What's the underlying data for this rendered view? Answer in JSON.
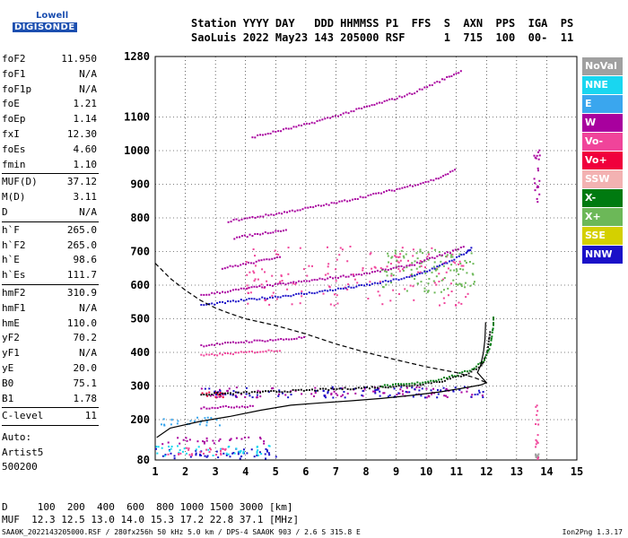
{
  "logo": {
    "line1": "Lowell",
    "line2": "DIGISONDE"
  },
  "header": {
    "line1": "Station YYYY DAY   DDD HHMMSS P1  FFS  S  AXN  PPS  IGA  PS",
    "line2": "SaoLuis 2022 May23 143 205000 RSF      1  715  100  00-  11"
  },
  "params": [
    [
      [
        "foF2",
        "11.950"
      ],
      [
        "foF1",
        "N/A"
      ],
      [
        "foF1p",
        "N/A"
      ],
      [
        "foE",
        "1.21"
      ],
      [
        "foEp",
        "1.14"
      ],
      [
        "fxI",
        "12.30"
      ],
      [
        "foEs",
        "4.60"
      ],
      [
        "fmin",
        "1.10"
      ]
    ],
    [
      [
        "MUF(D)",
        "37.12"
      ],
      [
        "M(D)",
        "3.11"
      ],
      [
        "D",
        "N/A"
      ]
    ],
    [
      [
        "h`F",
        "265.0"
      ],
      [
        "h`F2",
        "265.0"
      ],
      [
        "h`E",
        "98.6"
      ],
      [
        "h`Es",
        "111.7"
      ]
    ],
    [
      [
        "hmF2",
        "310.9"
      ],
      [
        "hmF1",
        "N/A"
      ],
      [
        "hmE",
        "110.0"
      ],
      [
        "yF2",
        "70.2"
      ],
      [
        "yF1",
        "N/A"
      ],
      [
        "yE",
        "20.0"
      ],
      [
        "B0",
        "75.1"
      ],
      [
        "B1",
        "1.78"
      ]
    ],
    [
      [
        "C-level",
        "11"
      ]
    ]
  ],
  "auto": {
    "l1": "Auto:",
    "l2": "Artist5",
    "l3": "500200"
  },
  "legend": [
    {
      "label": "NoVal",
      "color": "#a0a0a0"
    },
    {
      "label": "NNE",
      "color": "#19d6f0"
    },
    {
      "label": "E",
      "color": "#3aa6ee"
    },
    {
      "label": "W",
      "color": "#a8009e"
    },
    {
      "label": "Vo-",
      "color": "#f0449a"
    },
    {
      "label": "Vo+",
      "color": "#f0003c"
    },
    {
      "label": "SSW",
      "color": "#f3b2b2"
    },
    {
      "label": "X-",
      "color": "#007a10"
    },
    {
      "label": "X+",
      "color": "#6cb858"
    },
    {
      "label": "SSE",
      "color": "#d4d000"
    },
    {
      "label": "NNW",
      "color": "#1a10c8"
    }
  ],
  "chart_data": {
    "type": "scatter",
    "title": "",
    "xlabel": "",
    "ylabel": "",
    "xlim": [
      1,
      15
    ],
    "ylim": [
      80,
      1280
    ],
    "x_ticks": [
      1,
      2,
      3,
      4,
      5,
      6,
      7,
      8,
      9,
      10,
      11,
      12,
      13,
      14,
      15
    ],
    "y_ticks": [
      80,
      200,
      300,
      400,
      500,
      600,
      700,
      800,
      900,
      1000,
      1100,
      1280
    ],
    "grid": true,
    "series": [
      {
        "color": "#000000",
        "dash": false,
        "points": [
          [
            1.05,
            147
          ],
          [
            1.5,
            175
          ],
          [
            2.5,
            195
          ],
          [
            3.5,
            210
          ],
          [
            4.5,
            228
          ],
          [
            5.5,
            243
          ],
          [
            6.5,
            250
          ],
          [
            7.5,
            256
          ],
          [
            8.5,
            263
          ],
          [
            9.5,
            272
          ],
          [
            10.5,
            283
          ],
          [
            11.3,
            295
          ],
          [
            11.8,
            303
          ],
          [
            12.0,
            310
          ],
          [
            11.9,
            320
          ],
          [
            11.7,
            340
          ],
          [
            11.8,
            360
          ],
          [
            11.9,
            400
          ],
          [
            11.95,
            440
          ],
          [
            11.97,
            490
          ]
        ]
      },
      {
        "color": "#000000",
        "dash": true,
        "points": [
          [
            1.0,
            665
          ],
          [
            1.5,
            620
          ],
          [
            2.0,
            585
          ],
          [
            2.5,
            555
          ],
          [
            3.0,
            532
          ],
          [
            3.5,
            515
          ],
          [
            4.0,
            500
          ],
          [
            5.0,
            480
          ],
          [
            6.0,
            455
          ],
          [
            7.0,
            425
          ],
          [
            8.0,
            400
          ],
          [
            9.0,
            378
          ],
          [
            10.0,
            357
          ],
          [
            11.0,
            340
          ],
          [
            11.6,
            325
          ],
          [
            12.0,
            310
          ]
        ]
      }
    ],
    "traces": [
      {
        "color": "#111111",
        "points": [
          [
            2.5,
            275
          ],
          [
            4.0,
            280
          ],
          [
            6.0,
            287
          ],
          [
            8.0,
            295
          ],
          [
            9.5,
            302
          ],
          [
            10.5,
            315
          ],
          [
            11.3,
            335
          ],
          [
            11.8,
            360
          ],
          [
            12.0,
            400
          ],
          [
            12.1,
            470
          ]
        ]
      },
      {
        "color": "#007a10",
        "points": [
          [
            8.5,
            300
          ],
          [
            9.5,
            306
          ],
          [
            10.3,
            318
          ],
          [
            11.0,
            333
          ],
          [
            11.5,
            350
          ],
          [
            11.9,
            378
          ],
          [
            12.1,
            420
          ],
          [
            12.2,
            480
          ],
          [
            12.2,
            510
          ]
        ]
      },
      {
        "color": "#1a10c8",
        "points": [
          [
            2.5,
            540
          ],
          [
            4.0,
            556
          ],
          [
            6.0,
            575
          ],
          [
            8.0,
            600
          ],
          [
            9.5,
            625
          ],
          [
            10.5,
            660
          ],
          [
            11.3,
            695
          ],
          [
            11.5,
            712
          ]
        ]
      },
      {
        "color": "#a8009e",
        "points": [
          [
            2.5,
            570
          ],
          [
            4,
            590
          ],
          [
            6,
            612
          ],
          [
            8,
            635
          ],
          [
            9.5,
            660
          ],
          [
            10.5,
            690
          ],
          [
            11.3,
            715
          ]
        ]
      },
      {
        "color": "#a8009e",
        "points": [
          [
            3.4,
            790
          ],
          [
            5,
            812
          ],
          [
            7,
            845
          ],
          [
            9,
            885
          ],
          [
            10.3,
            915
          ],
          [
            11,
            945
          ]
        ]
      },
      {
        "color": "#a8009e",
        "points": [
          [
            4.2,
            1040
          ],
          [
            6,
            1078
          ],
          [
            8,
            1130
          ],
          [
            9.5,
            1170
          ],
          [
            10.5,
            1210
          ],
          [
            11.2,
            1240
          ]
        ]
      },
      {
        "color": "#a8009e",
        "points": [
          [
            2.5,
            420
          ],
          [
            4,
            432
          ],
          [
            5.5,
            440
          ],
          [
            6.0,
            446
          ]
        ]
      },
      {
        "color": "#f0449a",
        "points": [
          [
            2.5,
            390
          ],
          [
            4,
            400
          ],
          [
            5.2,
            407
          ]
        ]
      },
      {
        "color": "#a8009e",
        "points": [
          [
            2.5,
            235
          ],
          [
            3.5,
            238
          ],
          [
            4.3,
            241
          ]
        ]
      },
      {
        "color": "#a8009e",
        "points": [
          [
            3.2,
            650
          ],
          [
            4.5,
            672
          ],
          [
            5.2,
            688
          ]
        ]
      },
      {
        "color": "#a8009e",
        "points": [
          [
            3.6,
            740
          ],
          [
            4.8,
            758
          ],
          [
            5.4,
            766
          ]
        ]
      }
    ],
    "clusters": [
      {
        "color": "#1a10c8",
        "x": [
          1.0,
          5.0
        ],
        "y": [
          85,
          118
        ]
      },
      {
        "color": "#19d6f0",
        "x": [
          1.0,
          4.8
        ],
        "y": [
          95,
          125
        ]
      },
      {
        "color": "#3aa6ee",
        "x": [
          1.1,
          3.2
        ],
        "y": [
          185,
          210
        ]
      },
      {
        "color": "#a8009e",
        "x": [
          1.2,
          4.6
        ],
        "y": [
          130,
          150
        ]
      },
      {
        "color": "#f0449a",
        "x": [
          1.4,
          3.4
        ],
        "y": [
          96,
          120
        ]
      },
      {
        "color": "#f0003c",
        "x": [
          2.5,
          3.3
        ],
        "y": [
          268,
          290
        ]
      },
      {
        "color": "#a8009e",
        "x": [
          2.5,
          11.9
        ],
        "y": [
          268,
          300
        ]
      },
      {
        "color": "#1a10c8",
        "x": [
          2.5,
          11.9
        ],
        "y": [
          268,
          300
        ]
      },
      {
        "color": "#f0449a",
        "x": [
          4.0,
          11.5
        ],
        "y": [
          540,
          720
        ]
      },
      {
        "color": "#6cb858",
        "x": [
          8.5,
          11.6
        ],
        "y": [
          580,
          710
        ]
      },
      {
        "color": "#a8009e",
        "x": [
          13.55,
          13.75
        ],
        "y": [
          850,
          1010
        ]
      },
      {
        "color": "#a0a0a0",
        "x": [
          13.6,
          13.7
        ],
        "y": [
          85,
          100
        ]
      },
      {
        "color": "#f0449a",
        "x": [
          13.6,
          13.7
        ],
        "y": [
          85,
          260
        ]
      }
    ]
  },
  "footer": {
    "line1": "D     100  200  400  600  800 1000 1500 3000 [km]",
    "line2": "MUF  12.3 12.5 13.0 14.0 15.3 17.2 22.8 37.1 [MHz]",
    "line3": "SAA0K_2022143205000.RSF / 280fx256h 50 kHz 5.0 km / DPS-4 SAA0K 903 / 2.6 S 315.8 E",
    "version": "Ion2Png 1.3.17"
  }
}
